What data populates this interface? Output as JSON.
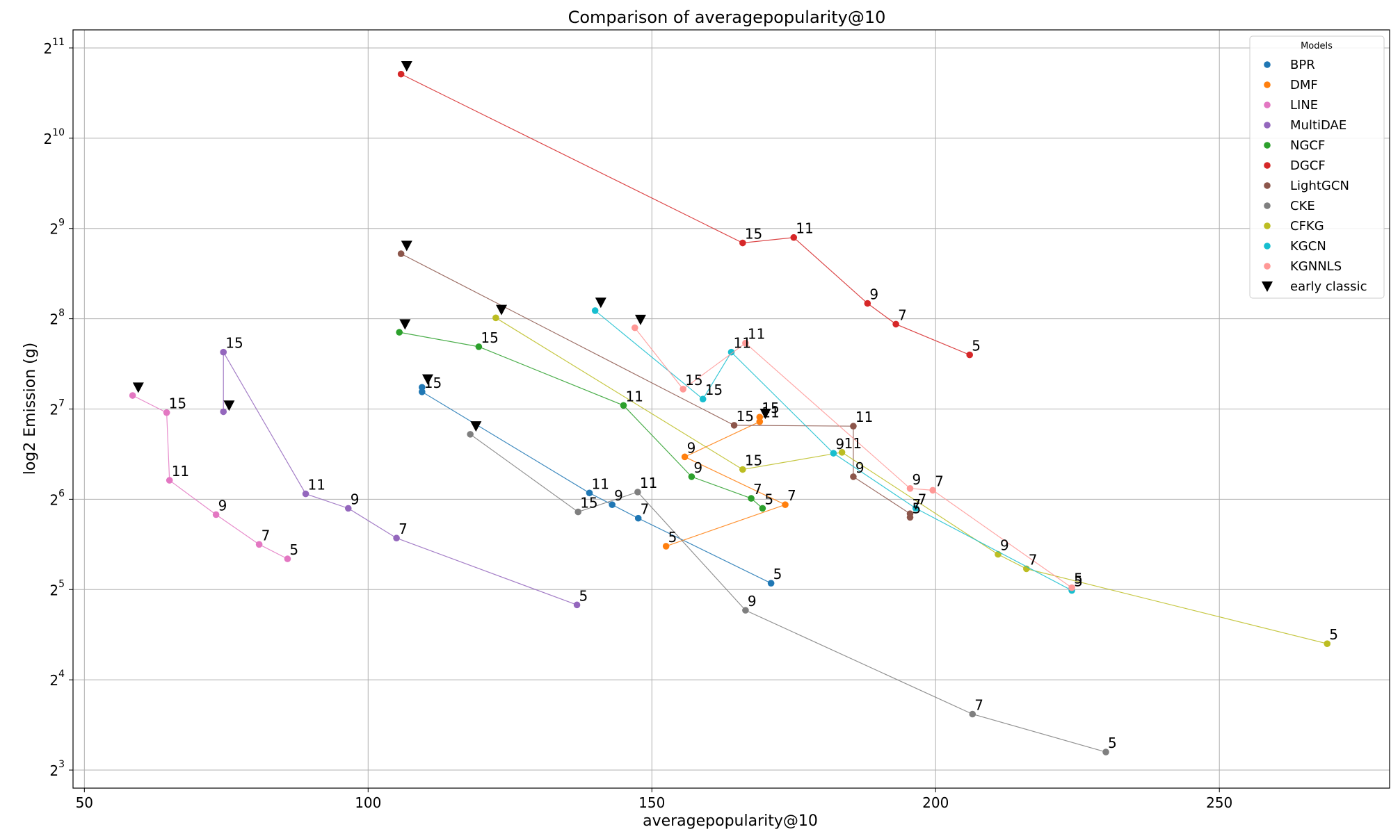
{
  "chart_data": {
    "type": "scatter",
    "title": "Comparison of averagepopularity@10",
    "xlabel": "averagepopularity@10",
    "ylabel": "log2 Emission (g)",
    "xlim": [
      48,
      280
    ],
    "ylim": [
      2.8,
      11.2
    ],
    "y_scale": "log2",
    "x_ticks": [
      50,
      100,
      150,
      200,
      250
    ],
    "y_ticks": [
      {
        "base": "2",
        "exp": "3",
        "value": 3
      },
      {
        "base": "2",
        "exp": "4",
        "value": 4
      },
      {
        "base": "2",
        "exp": "5",
        "value": 5
      },
      {
        "base": "2",
        "exp": "6",
        "value": 6
      },
      {
        "base": "2",
        "exp": "7",
        "value": 7
      },
      {
        "base": "2",
        "exp": "8",
        "value": 8
      },
      {
        "base": "2",
        "exp": "9",
        "value": 9
      },
      {
        "base": "2",
        "exp": "10",
        "value": 10
      },
      {
        "base": "2",
        "exp": "11",
        "value": 11
      }
    ],
    "grid": true,
    "legend_title": "Models",
    "legend_position": "top-right",
    "early_classic_label": "early classic",
    "series": [
      {
        "name": "BPR",
        "color": "#1f77b4",
        "points": [
          {
            "label": "5",
            "x": 171.0,
            "y": 5.07
          },
          {
            "label": "7",
            "x": 147.6,
            "y": 5.79
          },
          {
            "label": "9",
            "x": 143.0,
            "y": 5.94
          },
          {
            "label": "11",
            "x": 139.0,
            "y": 6.07
          },
          {
            "label": "15",
            "x": 109.5,
            "y": 7.19
          },
          {
            "label": "",
            "x": 109.5,
            "y": 7.24
          }
        ],
        "early_classic": {
          "x": 110.5,
          "y": 7.33
        }
      },
      {
        "name": "DMF",
        "color": "#ff7f0e",
        "points": [
          {
            "label": "5",
            "x": 152.5,
            "y": 5.48
          },
          {
            "label": "7",
            "x": 173.5,
            "y": 5.94
          },
          {
            "label": "9",
            "x": 155.8,
            "y": 6.47
          },
          {
            "label": "11",
            "x": 169.0,
            "y": 6.86
          },
          {
            "label": "15",
            "x": 169.0,
            "y": 6.91
          }
        ],
        "early_classic": {
          "x": 170.0,
          "y": 6.95
        }
      },
      {
        "name": "LINE",
        "color": "#e377c2",
        "points": [
          {
            "label": "5",
            "x": 85.8,
            "y": 5.34
          },
          {
            "label": "7",
            "x": 80.8,
            "y": 5.5
          },
          {
            "label": "9",
            "x": 73.2,
            "y": 5.83
          },
          {
            "label": "11",
            "x": 65.0,
            "y": 6.21
          },
          {
            "label": "15",
            "x": 64.5,
            "y": 6.96
          },
          {
            "label": "",
            "x": 58.5,
            "y": 7.15
          }
        ],
        "early_classic": {
          "x": 59.5,
          "y": 7.24
        }
      },
      {
        "name": "MultiDAE",
        "color": "#9467bd",
        "points": [
          {
            "label": "5",
            "x": 136.8,
            "y": 4.83
          },
          {
            "label": "7",
            "x": 105.0,
            "y": 5.57
          },
          {
            "label": "9",
            "x": 96.5,
            "y": 5.9
          },
          {
            "label": "11",
            "x": 89.0,
            "y": 6.06
          },
          {
            "label": "15",
            "x": 74.5,
            "y": 7.63
          },
          {
            "label": "",
            "x": 74.5,
            "y": 6.97
          }
        ],
        "early_classic": {
          "x": 75.5,
          "y": 7.04
        }
      },
      {
        "name": "NGCF",
        "color": "#2ca02c",
        "points": [
          {
            "label": "5",
            "x": 169.5,
            "y": 5.9
          },
          {
            "label": "7",
            "x": 167.5,
            "y": 6.01
          },
          {
            "label": "9",
            "x": 157.0,
            "y": 6.25
          },
          {
            "label": "11",
            "x": 145.0,
            "y": 7.04
          },
          {
            "label": "15",
            "x": 119.5,
            "y": 7.69
          },
          {
            "label": "",
            "x": 105.5,
            "y": 7.85
          }
        ],
        "early_classic": {
          "x": 106.5,
          "y": 7.94
        }
      },
      {
        "name": "DGCF",
        "color": "#d62728",
        "points": [
          {
            "label": "5",
            "x": 206.0,
            "y": 7.6
          },
          {
            "label": "7",
            "x": 193.0,
            "y": 7.94
          },
          {
            "label": "9",
            "x": 188.0,
            "y": 8.17
          },
          {
            "label": "11",
            "x": 175.0,
            "y": 8.9
          },
          {
            "label": "15",
            "x": 166.0,
            "y": 8.84
          },
          {
            "label": "",
            "x": 105.8,
            "y": 10.71
          }
        ],
        "early_classic": {
          "x": 106.8,
          "y": 10.8
        }
      },
      {
        "name": "LightGCN",
        "color": "#8c564b",
        "points": [
          {
            "label": "5",
            "x": 195.5,
            "y": 5.8
          },
          {
            "label": "7",
            "x": 195.5,
            "y": 5.84
          },
          {
            "label": "9",
            "x": 185.5,
            "y": 6.25
          },
          {
            "label": "11",
            "x": 185.5,
            "y": 6.81
          },
          {
            "label": "15",
            "x": 164.5,
            "y": 6.82
          },
          {
            "label": "",
            "x": 105.8,
            "y": 8.72
          }
        ],
        "early_classic": {
          "x": 106.8,
          "y": 8.81
        }
      },
      {
        "name": "CKE",
        "color": "#7f7f7f",
        "points": [
          {
            "label": "5",
            "x": 230.0,
            "y": 3.2
          },
          {
            "label": "7",
            "x": 206.5,
            "y": 3.62
          },
          {
            "label": "9",
            "x": 166.5,
            "y": 4.77
          },
          {
            "label": "11",
            "x": 147.5,
            "y": 6.08
          },
          {
            "label": "15",
            "x": 137.0,
            "y": 5.86
          },
          {
            "label": "",
            "x": 118.0,
            "y": 6.72
          }
        ],
        "early_classic": {
          "x": 119.0,
          "y": 6.81
        }
      },
      {
        "name": "CFKG",
        "color": "#bcbd22",
        "points": [
          {
            "label": "5",
            "x": 269.0,
            "y": 4.4
          },
          {
            "label": "7",
            "x": 216.0,
            "y": 5.23
          },
          {
            "label": "9",
            "x": 211.0,
            "y": 5.39
          },
          {
            "label": "11",
            "x": 183.5,
            "y": 6.52
          },
          {
            "label": "15",
            "x": 166.0,
            "y": 6.33
          },
          {
            "label": "",
            "x": 122.5,
            "y": 8.01
          }
        ],
        "early_classic": {
          "x": 123.5,
          "y": 8.1
        }
      },
      {
        "name": "KGCN",
        "color": "#17becf",
        "points": [
          {
            "label": "5",
            "x": 224.0,
            "y": 4.99
          },
          {
            "label": "7",
            "x": 196.5,
            "y": 5.9
          },
          {
            "label": "9",
            "x": 182.0,
            "y": 6.51
          },
          {
            "label": "11",
            "x": 164.0,
            "y": 7.63
          },
          {
            "label": "15",
            "x": 159.0,
            "y": 7.11
          },
          {
            "label": "",
            "x": 140.0,
            "y": 8.09
          }
        ],
        "early_classic": {
          "x": 141.0,
          "y": 8.18
        }
      },
      {
        "name": "KGNNLS",
        "color": "#ff9896",
        "points": [
          {
            "label": "5",
            "x": 224.0,
            "y": 5.02
          },
          {
            "label": "7",
            "x": 199.5,
            "y": 6.1
          },
          {
            "label": "9",
            "x": 195.5,
            "y": 6.12
          },
          {
            "label": "11",
            "x": 166.5,
            "y": 7.73
          },
          {
            "label": "15",
            "x": 155.5,
            "y": 7.22
          },
          {
            "label": "",
            "x": 147.0,
            "y": 7.9
          }
        ],
        "early_classic": {
          "x": 148.0,
          "y": 7.99
        }
      }
    ]
  }
}
